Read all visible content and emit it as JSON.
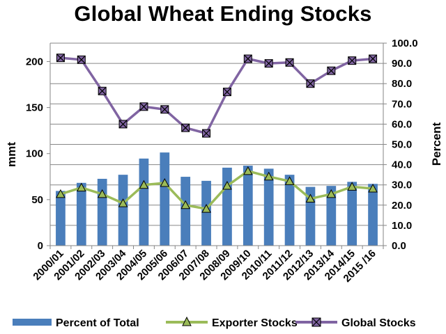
{
  "chart_data": {
    "type": "bar",
    "title": "Global Wheat Ending Stocks",
    "categories": [
      "2000/01",
      "2001/02",
      "2002/03",
      "2003/04",
      "2004/05",
      "2005/06",
      "2006/07",
      "2007/08",
      "2008/09",
      "2009/10",
      "2010/11",
      "2011/12",
      "2012/13",
      "2013/14",
      "2014/15",
      "2015 /16"
    ],
    "ylabel": "mmt",
    "y2label": "Percent",
    "ylim": [
      0,
      220
    ],
    "y2lim": [
      0,
      100
    ],
    "yticks": [
      "0",
      "50",
      "100",
      "150",
      "200"
    ],
    "y2ticks": [
      "0.0",
      "10.0",
      "20.0",
      "30.0",
      "40.0",
      "50.0",
      "60.0",
      "70.0",
      "80.0",
      "90.0",
      "100.0"
    ],
    "grid": true,
    "legend_position": "bottom",
    "series": [
      {
        "name": "Percent of Total",
        "type": "bar",
        "axis": "right",
        "color": "#4a7ebb",
        "values": [
          27,
          31,
          33,
          35,
          43,
          46,
          34,
          32,
          38.5,
          39.5,
          38,
          35,
          29,
          29.5,
          31.5,
          30.5
        ]
      },
      {
        "name": "Exporter Stocks",
        "type": "line",
        "axis": "left",
        "color": "#9bbb59",
        "values": [
          56,
          63,
          56,
          46,
          66,
          68,
          44,
          40,
          65,
          81,
          75,
          70,
          51,
          56,
          64,
          62
        ]
      },
      {
        "name": "Global Stocks",
        "type": "line",
        "axis": "left",
        "color": "#8064a2",
        "values": [
          204,
          202,
          168,
          132,
          151,
          148,
          128,
          122,
          167,
          203,
          198,
          199,
          176,
          190,
          201,
          203
        ]
      }
    ]
  }
}
